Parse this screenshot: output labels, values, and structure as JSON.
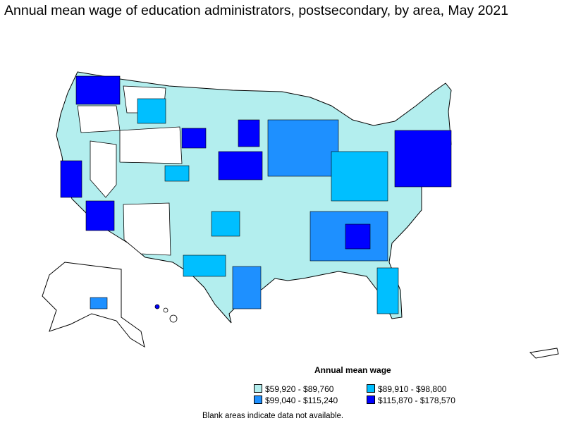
{
  "title": "Annual mean wage of education administrators, postsecondary, by area, May 2021",
  "legend": {
    "title": "Annual mean wage",
    "items": [
      {
        "label": "$59,920 - $89,760",
        "color": "#b3eeee"
      },
      {
        "label": "$89,910 - $98,800",
        "color": "#00bfff"
      },
      {
        "label": "$99,040 - $115,240",
        "color": "#1e90ff"
      },
      {
        "label": "$115,870 - $178,570",
        "color": "#0000ff"
      }
    ]
  },
  "footnote": "Blank areas indicate data not available."
}
